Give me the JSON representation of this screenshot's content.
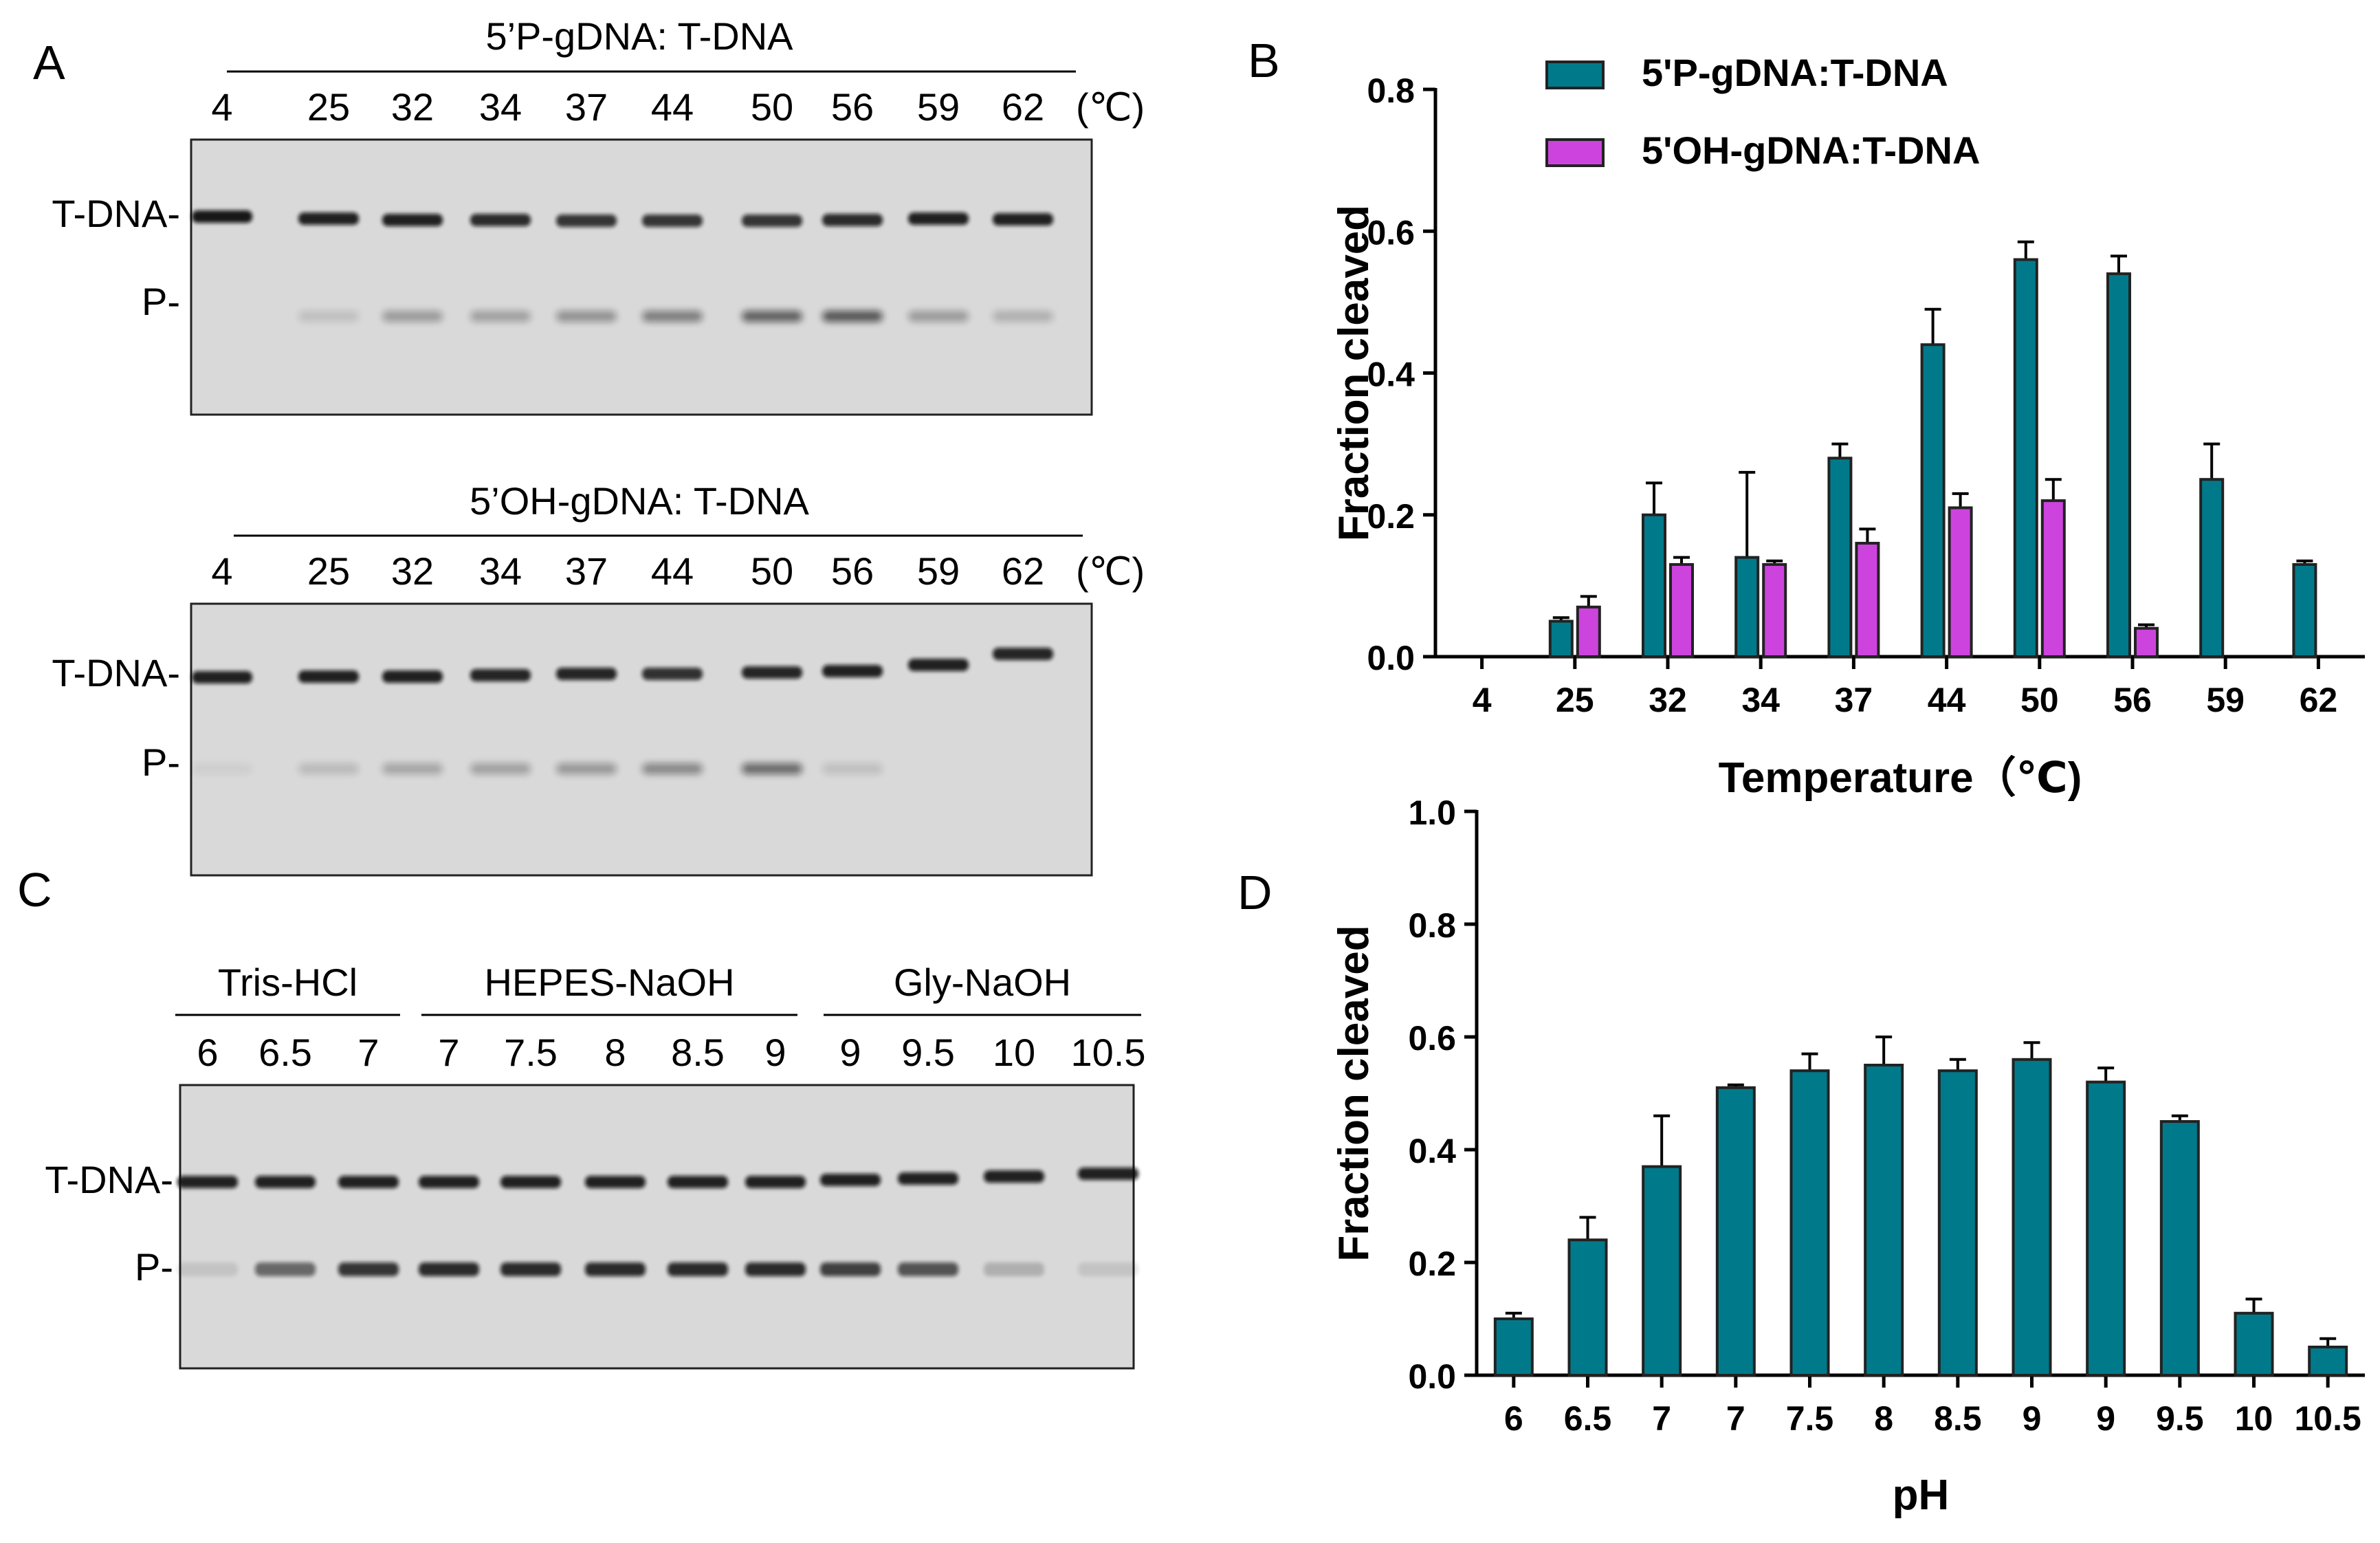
{
  "colors": {
    "teal": "#007a8a",
    "magenta": "#cc44dd",
    "axis": "#000000",
    "gel_bg": "#d9d9d9",
    "band": "#111111"
  },
  "panel_letters": {
    "a": "A",
    "b": "B",
    "c": "C",
    "d": "D"
  },
  "celsius_unit": "(℃)",
  "gel_a1": {
    "title": "5’P-gDNA: T-DNA",
    "lanes": [
      "4",
      "25",
      "32",
      "34",
      "37",
      "44",
      "50",
      "56",
      "59",
      "62"
    ],
    "row_labels": {
      "tdna": "T-DNA-",
      "p": "P-"
    }
  },
  "gel_a2": {
    "title": "5’OH-gDNA: T-DNA",
    "lanes": [
      "4",
      "25",
      "32",
      "34",
      "37",
      "44",
      "50",
      "56",
      "59",
      "62"
    ],
    "row_labels": {
      "tdna": "T-DNA-",
      "p": "P-"
    }
  },
  "gel_c": {
    "groups": [
      {
        "name": "Tris-HCl",
        "lanes": [
          "6",
          "6.5",
          "7"
        ]
      },
      {
        "name": "HEPES-NaOH",
        "lanes": [
          "7",
          "7.5",
          "8",
          "8.5",
          "9"
        ]
      },
      {
        "name": "Gly-NaOH",
        "lanes": [
          "9",
          "9.5",
          "10",
          "10.5"
        ]
      }
    ],
    "row_labels": {
      "tdna": "T-DNA-",
      "p": "P-"
    }
  },
  "chart_data": [
    {
      "type": "bar",
      "panel": "B",
      "title": "",
      "categories": [
        "4",
        "25",
        "32",
        "34",
        "37",
        "44",
        "50",
        "56",
        "59",
        "62"
      ],
      "series": [
        {
          "name": "5'P-gDNA:T-DNA",
          "values": [
            0,
            0.05,
            0.2,
            0.14,
            0.28,
            0.44,
            0.56,
            0.54,
            0.25,
            0.13
          ],
          "errors": [
            0,
            0.005,
            0.045,
            0.12,
            0.02,
            0.05,
            0.025,
            0.025,
            0.05,
            0.005
          ]
        },
        {
          "name": "5'OH-gDNA:T-DNA",
          "values": [
            0,
            0.07,
            0.13,
            0.13,
            0.16,
            0.21,
            0.22,
            0.04,
            0,
            0
          ],
          "errors": [
            0,
            0.015,
            0.01,
            0.005,
            0.02,
            0.02,
            0.03,
            0.005,
            0,
            0
          ]
        }
      ],
      "xlabel": "Temperature（℃)",
      "ylabel": "Fraction cleaved",
      "ylim": [
        0,
        0.8
      ],
      "yticks": [
        "0.0",
        "0.2",
        "0.4",
        "0.6",
        "0.8"
      ],
      "legend": "top-left"
    },
    {
      "type": "bar",
      "panel": "D",
      "title": "",
      "categories": [
        "6",
        "6.5",
        "7",
        "7",
        "7.5",
        "8",
        "8.5",
        "9",
        "9",
        "9.5",
        "10",
        "10.5"
      ],
      "series": [
        {
          "name": "Fraction cleaved",
          "values": [
            0.1,
            0.24,
            0.37,
            0.51,
            0.54,
            0.55,
            0.54,
            0.56,
            0.52,
            0.45,
            0.11,
            0.05
          ],
          "errors": [
            0.01,
            0.04,
            0.09,
            0.005,
            0.03,
            0.05,
            0.02,
            0.03,
            0.025,
            0.01,
            0.025,
            0.015
          ]
        }
      ],
      "xlabel": "pH",
      "ylabel": "Fraction cleaved",
      "ylim": [
        0,
        1.0
      ],
      "yticks": [
        "0.0",
        "0.2",
        "0.4",
        "0.6",
        "0.8",
        "1.0"
      ]
    }
  ]
}
